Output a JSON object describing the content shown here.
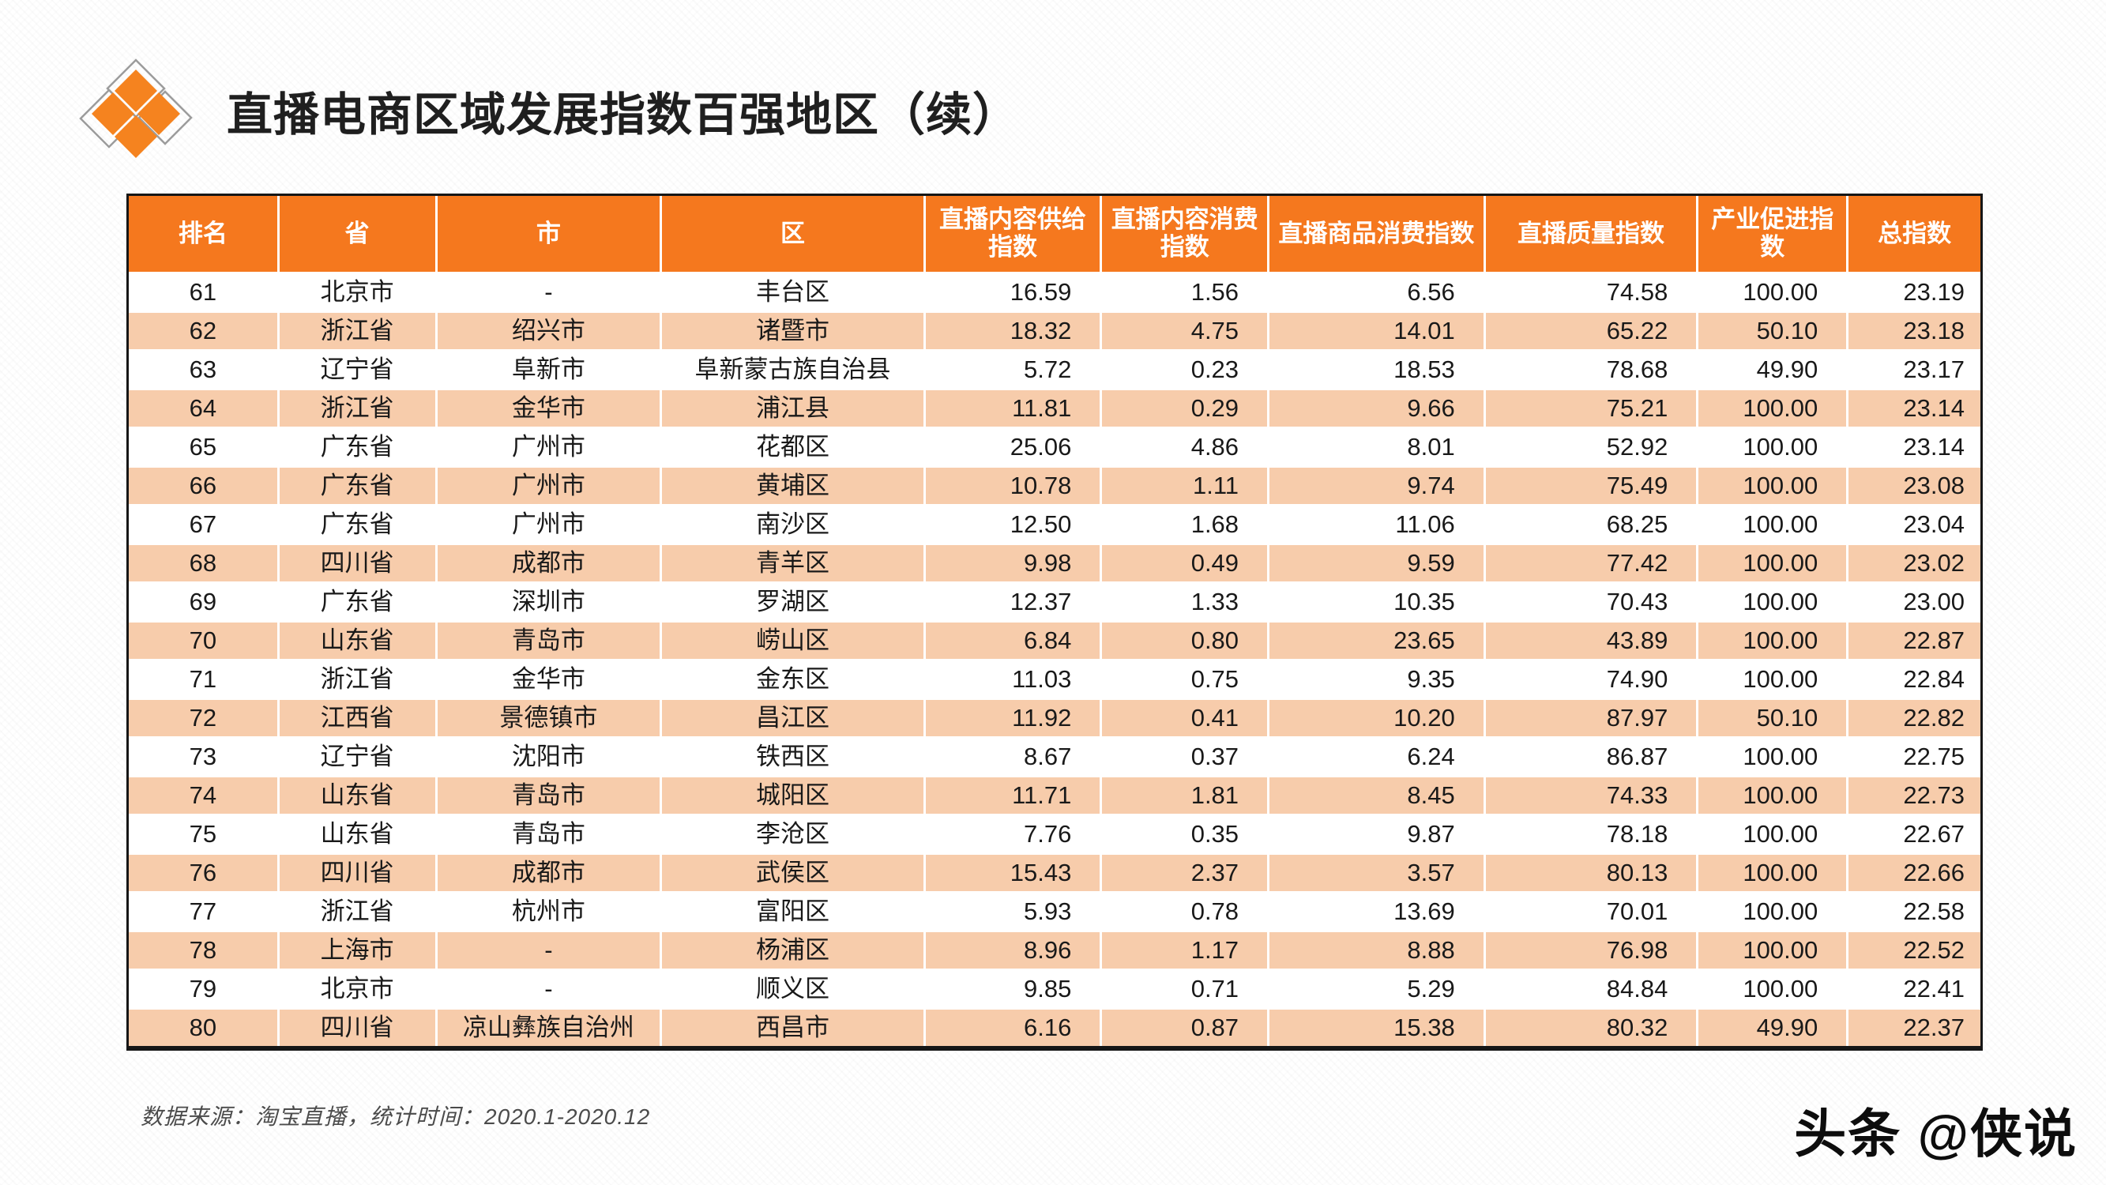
{
  "page": {
    "title": "直播电商区域发展指数百强地区（续）",
    "source_note": "数据来源：淘宝直播，统计时间：2020.1-2020.12",
    "watermark": "头条 @侠说"
  },
  "colors": {
    "header_bg": "#F5781E",
    "row_alt_bg": "#F7CCAB",
    "logo_orange": "#F5831F",
    "logo_outline": "#9c9c9c",
    "border_black": "#161616"
  },
  "chart_data": {
    "type": "table",
    "title": "直播电商区域发展指数百强地区（续）",
    "columns": [
      "排名",
      "省",
      "市",
      "区",
      "直播内容供给指数",
      "直播内容消费指数",
      "直播商品消费指数",
      "直播质量指数",
      "产业促进指数",
      "总指数"
    ],
    "rows": [
      {
        "rank": 61,
        "province": "北京市",
        "city": "-",
        "district": "丰台区",
        "values": [
          16.59,
          1.56,
          6.56,
          74.58,
          100.0,
          23.19
        ]
      },
      {
        "rank": 62,
        "province": "浙江省",
        "city": "绍兴市",
        "district": "诸暨市",
        "values": [
          18.32,
          4.75,
          14.01,
          65.22,
          50.1,
          23.18
        ]
      },
      {
        "rank": 63,
        "province": "辽宁省",
        "city": "阜新市",
        "district": "阜新蒙古族自治县",
        "values": [
          5.72,
          0.23,
          18.53,
          78.68,
          49.9,
          23.17
        ]
      },
      {
        "rank": 64,
        "province": "浙江省",
        "city": "金华市",
        "district": "浦江县",
        "values": [
          11.81,
          0.29,
          9.66,
          75.21,
          100.0,
          23.14
        ]
      },
      {
        "rank": 65,
        "province": "广东省",
        "city": "广州市",
        "district": "花都区",
        "values": [
          25.06,
          4.86,
          8.01,
          52.92,
          100.0,
          23.14
        ]
      },
      {
        "rank": 66,
        "province": "广东省",
        "city": "广州市",
        "district": "黄埔区",
        "values": [
          10.78,
          1.11,
          9.74,
          75.49,
          100.0,
          23.08
        ]
      },
      {
        "rank": 67,
        "province": "广东省",
        "city": "广州市",
        "district": "南沙区",
        "values": [
          12.5,
          1.68,
          11.06,
          68.25,
          100.0,
          23.04
        ]
      },
      {
        "rank": 68,
        "province": "四川省",
        "city": "成都市",
        "district": "青羊区",
        "values": [
          9.98,
          0.49,
          9.59,
          77.42,
          100.0,
          23.02
        ]
      },
      {
        "rank": 69,
        "province": "广东省",
        "city": "深圳市",
        "district": "罗湖区",
        "values": [
          12.37,
          1.33,
          10.35,
          70.43,
          100.0,
          23.0
        ]
      },
      {
        "rank": 70,
        "province": "山东省",
        "city": "青岛市",
        "district": "崂山区",
        "values": [
          6.84,
          0.8,
          23.65,
          43.89,
          100.0,
          22.87
        ]
      },
      {
        "rank": 71,
        "province": "浙江省",
        "city": "金华市",
        "district": "金东区",
        "values": [
          11.03,
          0.75,
          9.35,
          74.9,
          100.0,
          22.84
        ]
      },
      {
        "rank": 72,
        "province": "江西省",
        "city": "景德镇市",
        "district": "昌江区",
        "values": [
          11.92,
          0.41,
          10.2,
          87.97,
          50.1,
          22.82
        ]
      },
      {
        "rank": 73,
        "province": "辽宁省",
        "city": "沈阳市",
        "district": "铁西区",
        "values": [
          8.67,
          0.37,
          6.24,
          86.87,
          100.0,
          22.75
        ]
      },
      {
        "rank": 74,
        "province": "山东省",
        "city": "青岛市",
        "district": "城阳区",
        "values": [
          11.71,
          1.81,
          8.45,
          74.33,
          100.0,
          22.73
        ]
      },
      {
        "rank": 75,
        "province": "山东省",
        "city": "青岛市",
        "district": "李沧区",
        "values": [
          7.76,
          0.35,
          9.87,
          78.18,
          100.0,
          22.67
        ]
      },
      {
        "rank": 76,
        "province": "四川省",
        "city": "成都市",
        "district": "武侯区",
        "values": [
          15.43,
          2.37,
          3.57,
          80.13,
          100.0,
          22.66
        ]
      },
      {
        "rank": 77,
        "province": "浙江省",
        "city": "杭州市",
        "district": "富阳区",
        "values": [
          5.93,
          0.78,
          13.69,
          70.01,
          100.0,
          22.58
        ]
      },
      {
        "rank": 78,
        "province": "上海市",
        "city": "-",
        "district": "杨浦区",
        "values": [
          8.96,
          1.17,
          8.88,
          76.98,
          100.0,
          22.52
        ]
      },
      {
        "rank": 79,
        "province": "北京市",
        "city": "-",
        "district": "顺义区",
        "values": [
          9.85,
          0.71,
          5.29,
          84.84,
          100.0,
          22.41
        ]
      },
      {
        "rank": 80,
        "province": "四川省",
        "city": "凉山彝族自治州",
        "district": "西昌市",
        "values": [
          6.16,
          0.87,
          15.38,
          80.32,
          49.9,
          22.37
        ]
      }
    ],
    "column_widths_pct": [
      8.13,
      8.51,
      12.13,
      14.21,
      9.53,
      9.02,
      11.66,
      11.49,
      8.09,
      7.23
    ],
    "layout": {
      "alt_row_shading": "even ranks shaded peach",
      "value_alignment": "right",
      "label_alignment": "center"
    }
  }
}
